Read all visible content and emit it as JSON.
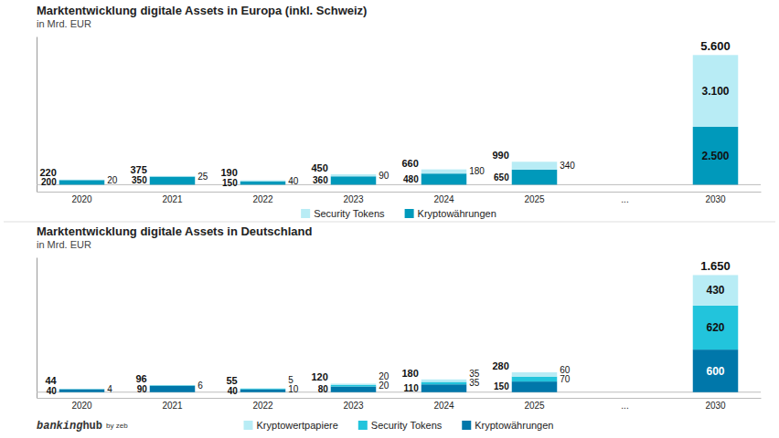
{
  "chart_data": [
    {
      "type": "bar",
      "stacked": true,
      "title": "Marktentwicklung digitale Assets in Europa (inkl. Schweiz)",
      "subtitle": "in Mrd. EUR",
      "categories": [
        "2020",
        "2021",
        "2022",
        "2023",
        "2024",
        "2025",
        "...",
        "2030"
      ],
      "series": [
        {
          "name": "Kryptowährungen",
          "color": "#0099bb",
          "values": [
            200,
            350,
            150,
            360,
            480,
            650,
            null,
            2500
          ],
          "value_labels": [
            "200",
            "350",
            "150",
            "360",
            "480",
            "650",
            null,
            "2.500"
          ]
        },
        {
          "name": "Security Tokens",
          "color": "#b8ecf5",
          "values": [
            20,
            25,
            40,
            90,
            180,
            340,
            null,
            3100
          ],
          "value_labels": [
            "20",
            "25",
            "40",
            "90",
            "180",
            "340",
            null,
            "3.100"
          ]
        }
      ],
      "totals": [
        220,
        375,
        190,
        450,
        660,
        990,
        null,
        5600
      ],
      "total_labels": [
        "220",
        "375",
        "190",
        "450",
        "660",
        "990",
        null,
        "5.600"
      ],
      "ylim": [
        -300,
        6400
      ],
      "yticks": [
        0
      ],
      "tick_labels": "x",
      "data_labels": true,
      "legend": "bottom",
      "grid": false
    },
    {
      "type": "bar",
      "stacked": true,
      "title": "Marktentwicklung digitale Assets in Deutschland",
      "subtitle": "in Mrd. EUR",
      "categories": [
        "2020",
        "2021",
        "2022",
        "2023",
        "2024",
        "2025",
        "...",
        "2030"
      ],
      "series": [
        {
          "name": "Kryptowährungen",
          "color": "#0077aa",
          "values": [
            40,
            90,
            40,
            80,
            110,
            150,
            null,
            600
          ],
          "value_labels": [
            "40",
            "90",
            "40",
            "80",
            "110",
            "150",
            null,
            "600"
          ]
        },
        {
          "name": "Security Tokens",
          "color": "#22c4dc",
          "values": [
            4,
            6,
            10,
            20,
            35,
            70,
            null,
            620
          ],
          "value_labels": [
            "4",
            "6",
            "10",
            "20",
            "35",
            "70",
            null,
            "620"
          ]
        },
        {
          "name": "Kryptowertpapiere",
          "color": "#b8ecf5",
          "values": [
            0,
            0,
            5,
            20,
            35,
            60,
            null,
            430
          ],
          "value_labels": [
            null,
            null,
            "5",
            "20",
            "35",
            "60",
            null,
            "430"
          ]
        }
      ],
      "totals": [
        44,
        96,
        55,
        120,
        180,
        280,
        null,
        1650
      ],
      "total_labels": [
        "44",
        "96",
        "55",
        "120",
        "180",
        "280",
        null,
        "1.650"
      ],
      "ylim": [
        -80,
        1900
      ],
      "yticks": [
        0
      ],
      "tick_labels": "x",
      "data_labels": true,
      "legend": "bottom",
      "grid": false,
      "annotations": [
        "banking",
        "hub",
        "by zeb"
      ]
    }
  ]
}
